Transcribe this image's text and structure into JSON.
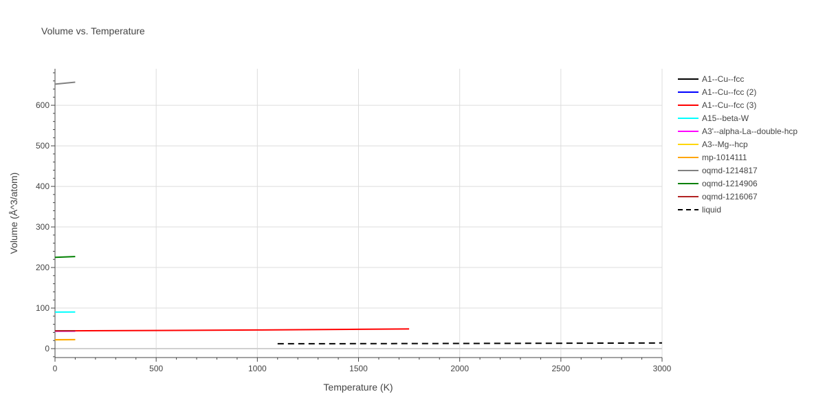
{
  "chart_data": {
    "type": "line",
    "title": "Volume vs. Temperature",
    "xlabel": "Temperature (K)",
    "ylabel": "Volume (Å^3/atom)",
    "xlim": [
      0,
      3000
    ],
    "ylim": [
      -22,
      690
    ],
    "xticks": [
      0,
      500,
      1000,
      1500,
      2000,
      2500,
      3000
    ],
    "yticks": [
      0,
      100,
      200,
      300,
      400,
      500,
      600
    ],
    "grid": true,
    "legend_position": "right",
    "series": [
      {
        "name": "A1--Cu--fcc",
        "color": "#000000",
        "dash": "solid",
        "x": [
          0,
          100
        ],
        "y": [
          43.5,
          43.8
        ]
      },
      {
        "name": "A1--Cu--fcc (2)",
        "color": "#0000ff",
        "dash": "solid",
        "x": [
          0,
          100
        ],
        "y": [
          43.6,
          43.9
        ]
      },
      {
        "name": "A1--Cu--fcc (3)",
        "color": "#ff0000",
        "dash": "solid",
        "x": [
          0,
          500,
          1000,
          1500,
          1750
        ],
        "y": [
          43.8,
          44.8,
          46.0,
          47.6,
          48.5
        ]
      },
      {
        "name": "A15--beta-W",
        "color": "#00ffff",
        "dash": "solid",
        "x": [
          0,
          100
        ],
        "y": [
          90.0,
          90.3
        ]
      },
      {
        "name": "A3'--alpha-La--double-hcp",
        "color": "#ff00ff",
        "dash": "solid",
        "x": [
          0,
          100
        ],
        "y": [
          42.8,
          43.1
        ]
      },
      {
        "name": "A3--Mg--hcp",
        "color": "#ffd700",
        "dash": "solid",
        "x": [
          0,
          100
        ],
        "y": [
          21.8,
          22.0
        ]
      },
      {
        "name": "mp-1014111",
        "color": "#ffa500",
        "dash": "solid",
        "x": [
          0,
          100
        ],
        "y": [
          22.0,
          22.2
        ]
      },
      {
        "name": "oqmd-1214817",
        "color": "#808080",
        "dash": "solid",
        "x": [
          0,
          100
        ],
        "y": [
          652,
          657
        ]
      },
      {
        "name": "oqmd-1214906",
        "color": "#008000",
        "dash": "solid",
        "x": [
          0,
          100
        ],
        "y": [
          225,
          227
        ]
      },
      {
        "name": "oqmd-1216067",
        "color": "#b22222",
        "dash": "solid",
        "x": [
          0,
          100
        ],
        "y": [
          43.7,
          44.0
        ]
      },
      {
        "name": "liquid",
        "color": "#000000",
        "dash": "dash",
        "x": [
          1100,
          1500,
          2000,
          2500,
          3000
        ],
        "y": [
          12.0,
          12.3,
          12.8,
          13.3,
          14.0
        ]
      }
    ]
  }
}
